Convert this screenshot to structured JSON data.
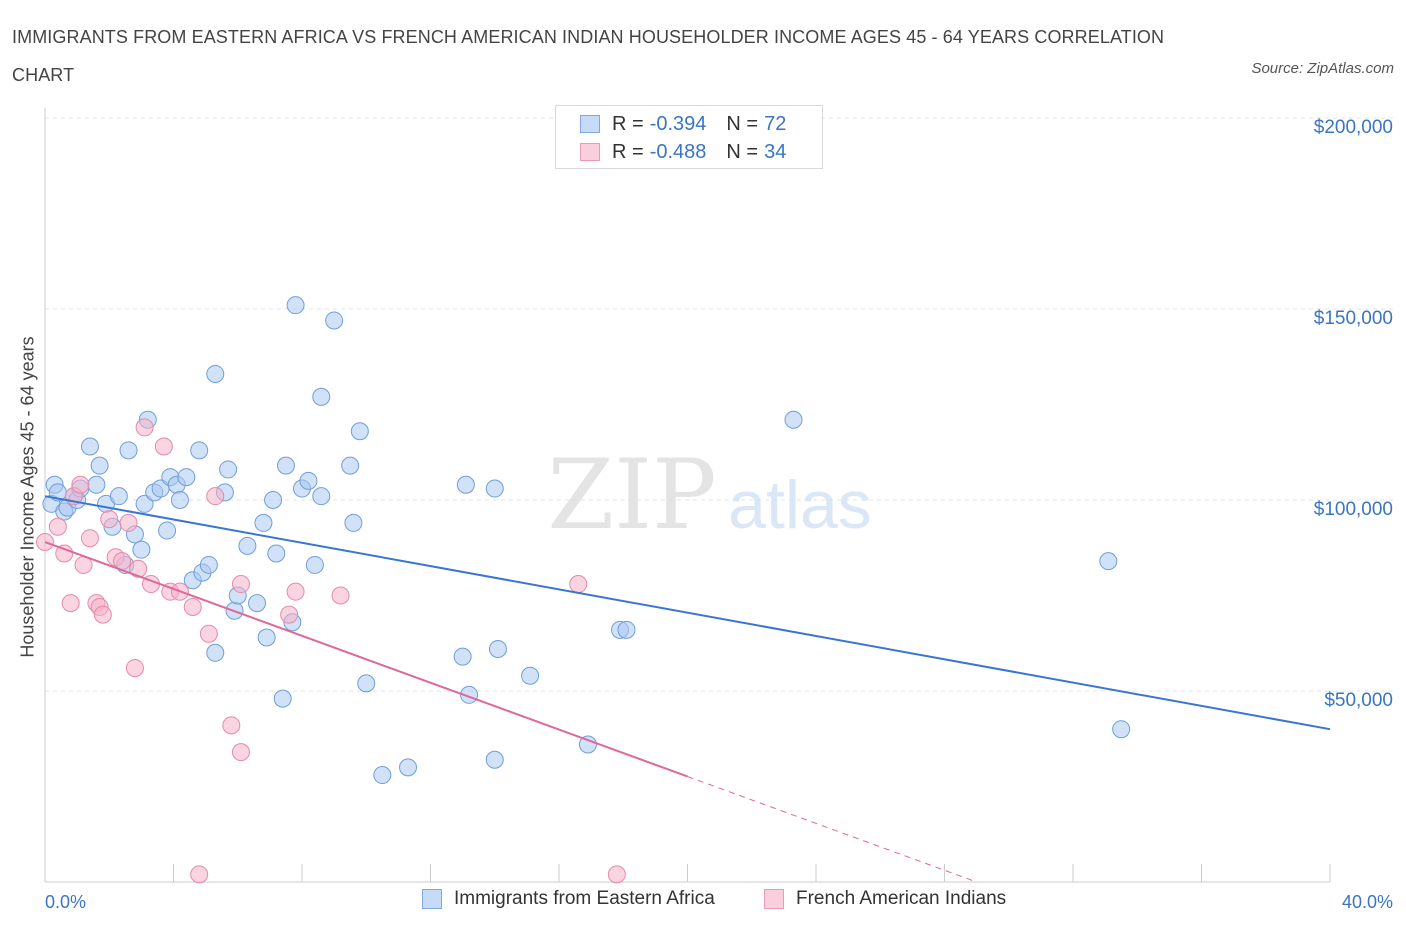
{
  "title": "IMMIGRANTS FROM EASTERN AFRICA VS FRENCH AMERICAN INDIAN HOUSEHOLDER INCOME AGES 45 - 64 YEARS CORRELATION CHART",
  "source": "Source: ZipAtlas.com",
  "watermark": {
    "zip": "ZIP",
    "atlas": "atlas"
  },
  "legend": {
    "rows": [
      {
        "r_label": "R = ",
        "r_value": "-0.394",
        "n_label": "N = ",
        "n_value": "72",
        "color": "#a9c8f2"
      },
      {
        "r_label": "R = ",
        "r_value": "-0.488",
        "n_label": "N = ",
        "n_value": "34",
        "color": "#f5b3c8"
      }
    ]
  },
  "bottom_legend": [
    "Immigrants from Eastern Africa",
    "French American Indians"
  ],
  "chart_data": {
    "type": "scatter",
    "title": "IMMIGRANTS FROM EASTERN AFRICA VS FRENCH AMERICAN INDIAN HOUSEHOLDER INCOME AGES 45 - 64 YEARS CORRELATION CHART",
    "xlabel": "",
    "ylabel": "Householder Income Ages 45 - 64 years",
    "xlim": [
      0,
      40
    ],
    "ylim": [
      0,
      200000
    ],
    "x_tick_labels": [
      "0.0%",
      "40.0%"
    ],
    "y_ticks": [
      50000,
      100000,
      150000,
      200000
    ],
    "y_tick_labels": [
      "$50,000",
      "$100,000",
      "$150,000",
      "$200,000"
    ],
    "grid": true,
    "legend_position": "top-center",
    "series": [
      {
        "name": "Immigrants from Eastern Africa",
        "color": "#a9c8f2",
        "stroke": "#6f9fd8",
        "line_color": "#3a75d4",
        "trend": {
          "x": [
            0,
            40
          ],
          "y": [
            101000,
            40000
          ],
          "dashed_from": null
        },
        "points": [
          [
            0.2,
            99000
          ],
          [
            0.3,
            104000
          ],
          [
            0.4,
            102000
          ],
          [
            0.6,
            97000
          ],
          [
            0.7,
            98000
          ],
          [
            0.9,
            101000
          ],
          [
            1.0,
            100000
          ],
          [
            1.1,
            103000
          ],
          [
            1.4,
            114000
          ],
          [
            1.6,
            104000
          ],
          [
            1.7,
            109000
          ],
          [
            1.9,
            99000
          ],
          [
            2.1,
            93000
          ],
          [
            2.3,
            101000
          ],
          [
            2.5,
            83000
          ],
          [
            2.6,
            113000
          ],
          [
            2.8,
            91000
          ],
          [
            3.0,
            87000
          ],
          [
            3.1,
            99000
          ],
          [
            3.2,
            121000
          ],
          [
            3.4,
            102000
          ],
          [
            3.6,
            103000
          ],
          [
            3.8,
            92000
          ],
          [
            3.9,
            106000
          ],
          [
            4.1,
            104000
          ],
          [
            4.2,
            100000
          ],
          [
            4.4,
            106000
          ],
          [
            4.6,
            79000
          ],
          [
            4.8,
            113000
          ],
          [
            4.9,
            81000
          ],
          [
            5.1,
            83000
          ],
          [
            5.3,
            133000
          ],
          [
            5.3,
            60000
          ],
          [
            5.6,
            102000
          ],
          [
            5.7,
            108000
          ],
          [
            5.9,
            71000
          ],
          [
            6.0,
            75000
          ],
          [
            6.3,
            88000
          ],
          [
            6.6,
            73000
          ],
          [
            6.8,
            94000
          ],
          [
            6.9,
            64000
          ],
          [
            7.1,
            100000
          ],
          [
            7.2,
            86000
          ],
          [
            7.4,
            48000
          ],
          [
            7.5,
            109000
          ],
          [
            7.7,
            68000
          ],
          [
            7.8,
            151000
          ],
          [
            8.0,
            103000
          ],
          [
            8.2,
            105000
          ],
          [
            8.4,
            83000
          ],
          [
            8.6,
            101000
          ],
          [
            8.6,
            127000
          ],
          [
            9.0,
            147000
          ],
          [
            9.5,
            109000
          ],
          [
            9.6,
            94000
          ],
          [
            9.8,
            118000
          ],
          [
            10.0,
            52000
          ],
          [
            10.5,
            28000
          ],
          [
            11.3,
            30000
          ],
          [
            13.0,
            59000
          ],
          [
            13.1,
            104000
          ],
          [
            13.2,
            49000
          ],
          [
            14.0,
            103000
          ],
          [
            14.0,
            32000
          ],
          [
            14.1,
            61000
          ],
          [
            15.1,
            54000
          ],
          [
            16.9,
            36000
          ],
          [
            17.9,
            66000
          ],
          [
            18.1,
            66000
          ],
          [
            23.3,
            121000
          ],
          [
            33.1,
            84000
          ],
          [
            33.5,
            40000
          ]
        ]
      },
      {
        "name": "French American Indians",
        "color": "#f5b3c8",
        "stroke": "#e58aa8",
        "line_color": "#e0679a",
        "trend": {
          "x": [
            0,
            29
          ],
          "y": [
            89000,
            0
          ],
          "solid_until": 20
        },
        "points": [
          [
            0.0,
            89000
          ],
          [
            0.4,
            93000
          ],
          [
            0.6,
            86000
          ],
          [
            0.9,
            101000
          ],
          [
            0.8,
            73000
          ],
          [
            1.1,
            104000
          ],
          [
            1.2,
            83000
          ],
          [
            1.4,
            90000
          ],
          [
            1.6,
            73000
          ],
          [
            1.7,
            72000
          ],
          [
            1.8,
            70000
          ],
          [
            2.0,
            95000
          ],
          [
            2.2,
            85000
          ],
          [
            2.4,
            84000
          ],
          [
            2.6,
            94000
          ],
          [
            2.8,
            56000
          ],
          [
            2.9,
            82000
          ],
          [
            3.1,
            119000
          ],
          [
            3.3,
            78000
          ],
          [
            3.7,
            114000
          ],
          [
            3.9,
            76000
          ],
          [
            4.2,
            76000
          ],
          [
            4.6,
            72000
          ],
          [
            4.8,
            2000
          ],
          [
            5.1,
            65000
          ],
          [
            5.3,
            101000
          ],
          [
            5.8,
            41000
          ],
          [
            6.1,
            34000
          ],
          [
            6.1,
            78000
          ],
          [
            7.6,
            70000
          ],
          [
            7.8,
            76000
          ],
          [
            9.2,
            75000
          ],
          [
            16.6,
            78000
          ],
          [
            17.8,
            2000
          ]
        ]
      }
    ]
  }
}
